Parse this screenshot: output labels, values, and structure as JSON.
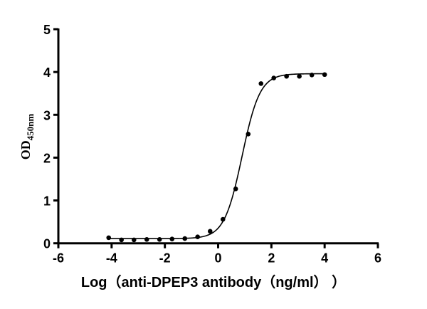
{
  "chart_data": {
    "type": "scatter",
    "title": "",
    "xlabel": "Log（anti-DPEP3 antibody（ng/ml） ）",
    "ylabel": {
      "main": "OD",
      "subscript": "450nm"
    },
    "xlim": [
      -6,
      6
    ],
    "ylim": [
      0,
      5
    ],
    "xticks": [
      "-6",
      "-4",
      "-2",
      "0",
      "2",
      "4",
      "6"
    ],
    "yticks": [
      "0",
      "1",
      "2",
      "3",
      "4",
      "5"
    ],
    "grid": false,
    "points": {
      "x": [
        -4.11,
        -3.63,
        -3.16,
        -2.68,
        -2.2,
        -1.73,
        -1.25,
        -0.77,
        -0.3,
        0.18,
        0.66,
        1.13,
        1.61,
        2.09,
        2.57,
        3.05,
        3.52,
        4.0
      ],
      "y": [
        0.13,
        0.08,
        0.08,
        0.09,
        0.09,
        0.1,
        0.11,
        0.15,
        0.28,
        0.56,
        1.27,
        2.55,
        3.73,
        3.86,
        3.9,
        3.9,
        3.93,
        3.94
      ]
    },
    "fit": {
      "type": "4PL sigmoid",
      "bottom": 0.11,
      "top": 3.96,
      "logEC50": 0.9,
      "hill": 1.3,
      "xrange": [
        -4.11,
        4.0
      ]
    },
    "colors": {
      "points": "#000000",
      "line": "#000000"
    }
  }
}
